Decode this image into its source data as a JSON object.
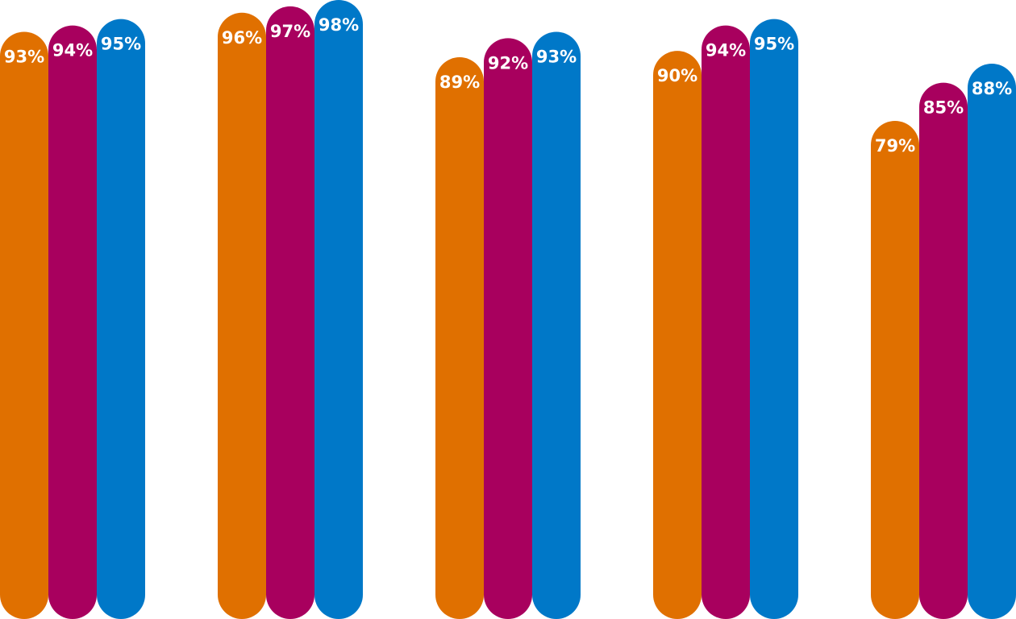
{
  "chart_data": {
    "type": "bar",
    "categories": [
      "",
      "",
      "",
      "",
      ""
    ],
    "series": [
      {
        "color": "#e07000",
        "values": [
          93,
          96,
          89,
          90,
          79
        ]
      },
      {
        "color": "#a8005e",
        "values": [
          94,
          97,
          92,
          94,
          85
        ]
      },
      {
        "color": "#0078c8",
        "values": [
          95,
          98,
          93,
          95,
          88
        ]
      }
    ],
    "value_suffix": "%",
    "title": "",
    "xlabel": "",
    "ylabel": "",
    "ylim": [
      0,
      100
    ],
    "grid": false,
    "legend": "none"
  }
}
